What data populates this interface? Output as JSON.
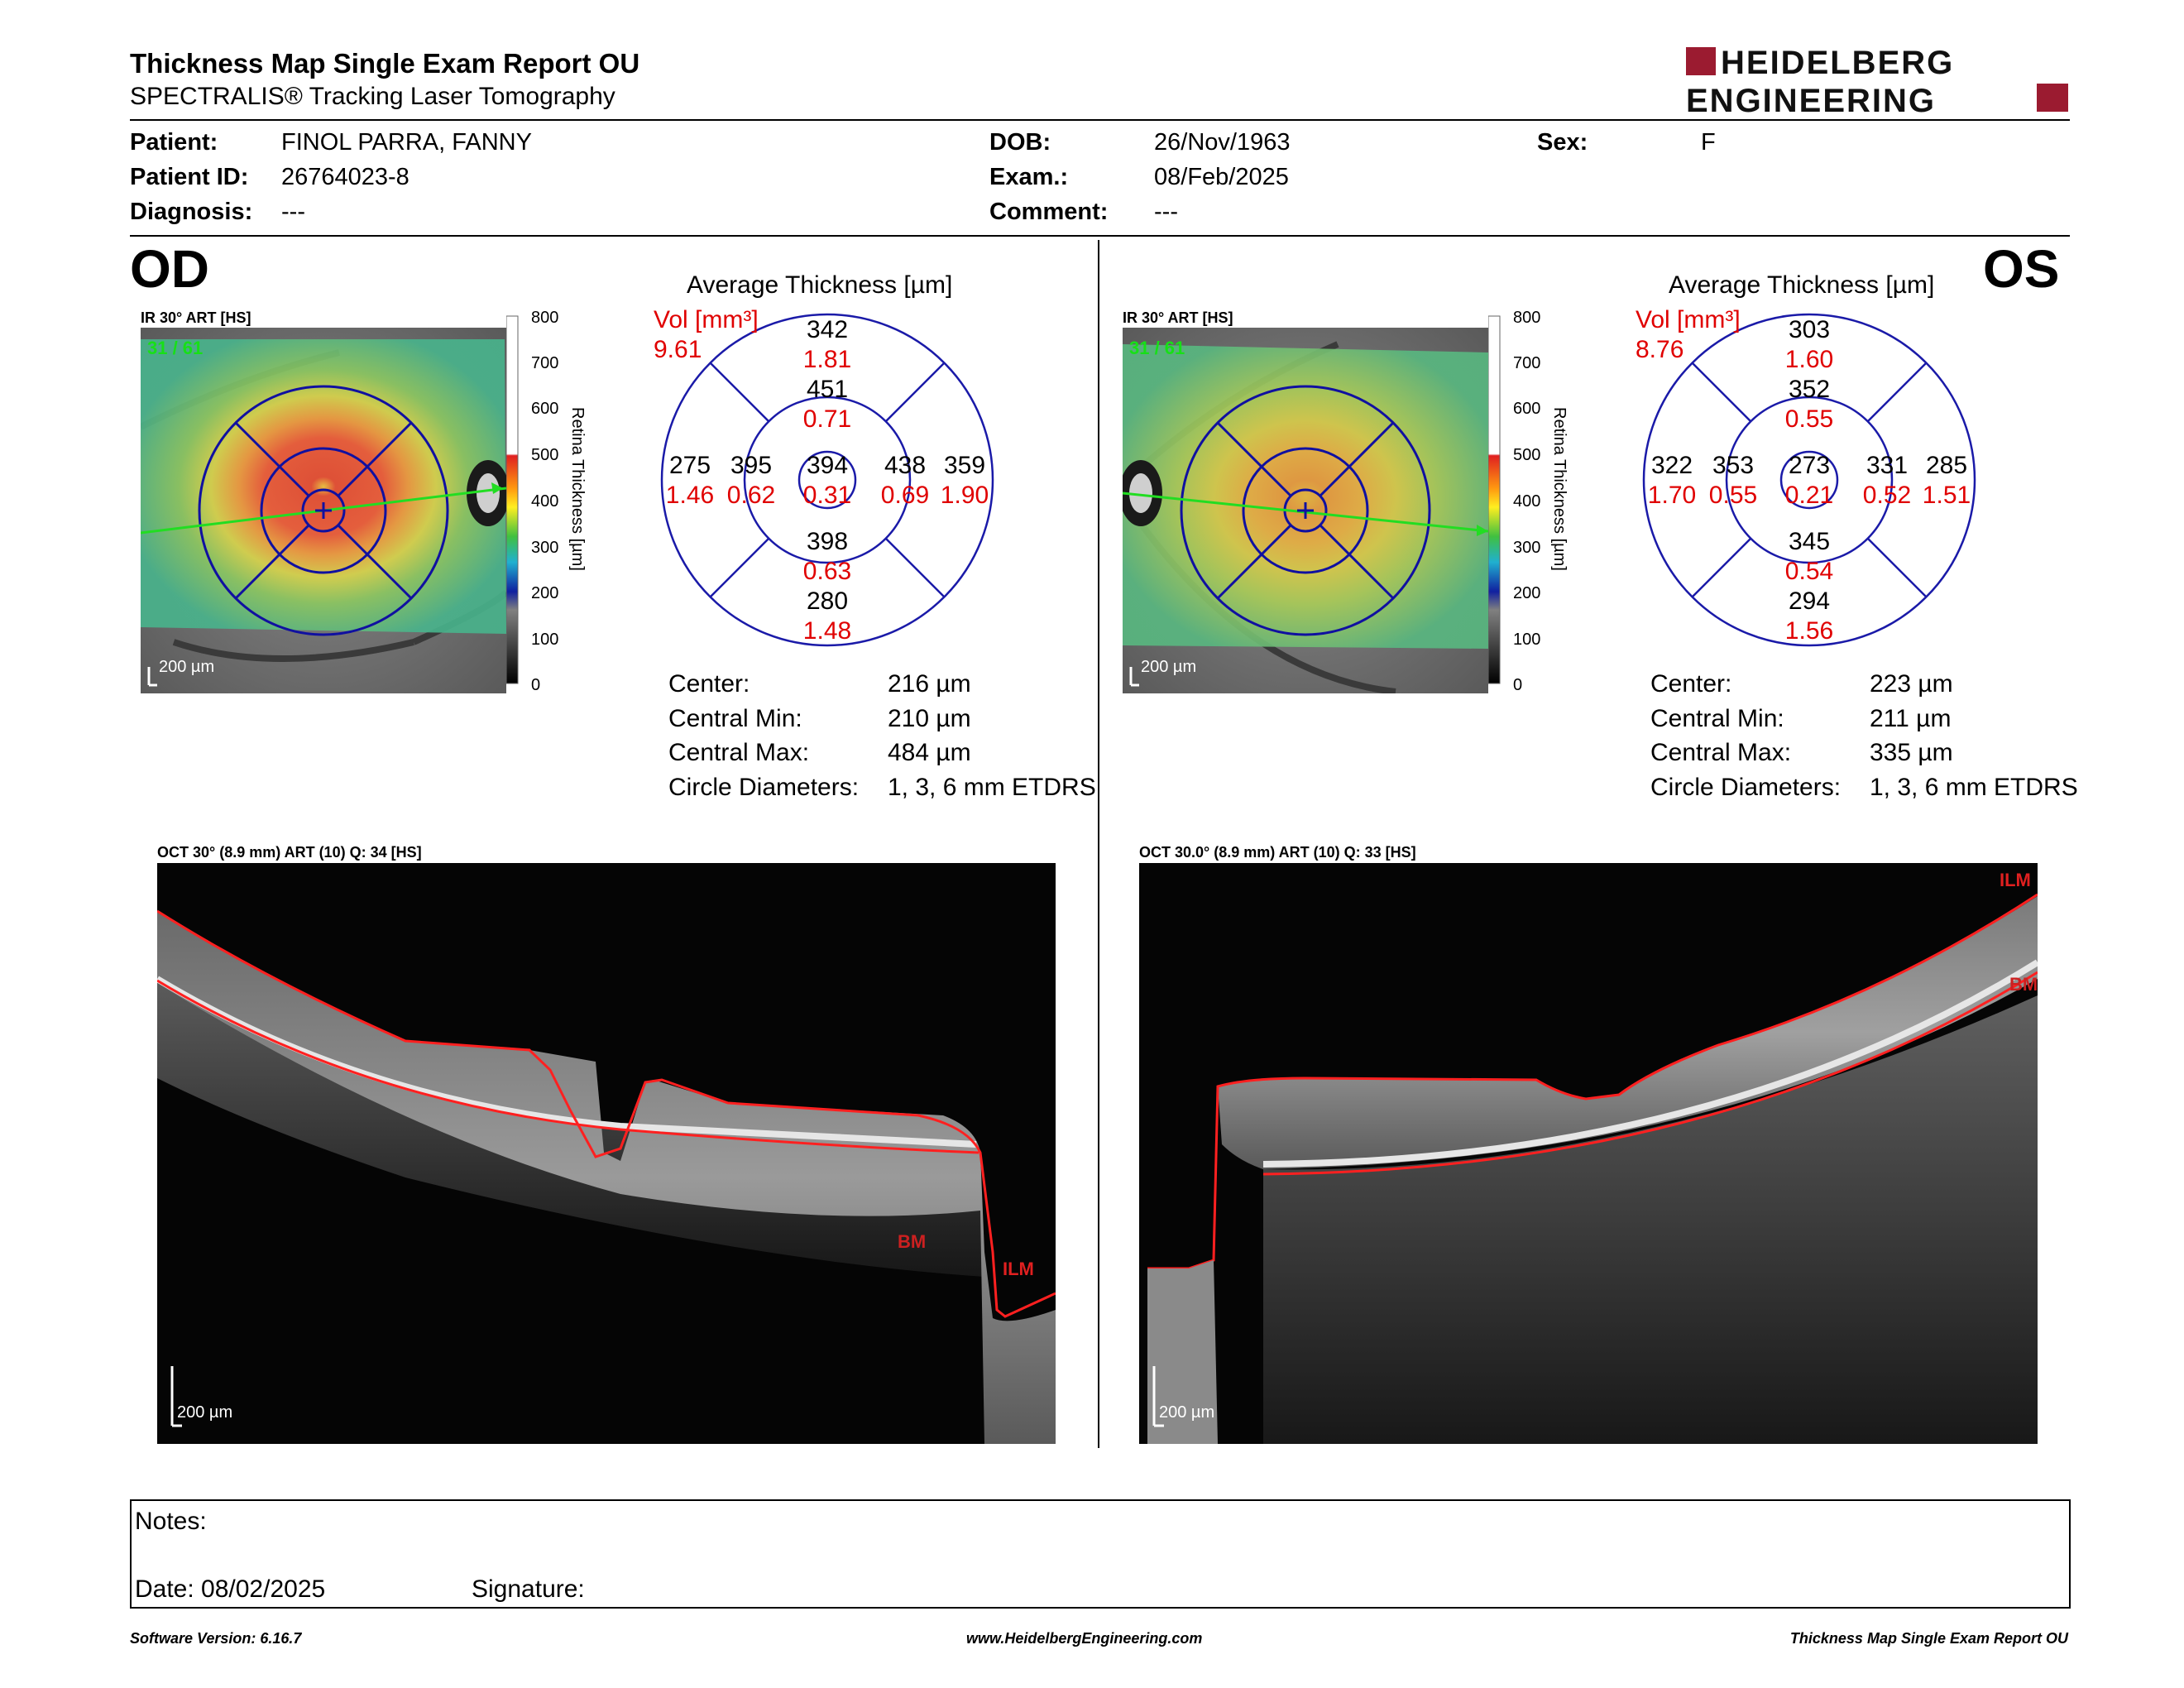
{
  "header": {
    "title": "Thickness Map Single Exam Report OU",
    "subtitle": "SPECTRALIS® Tracking Laser Tomography",
    "logo_line1": "HEIDELBERG",
    "logo_line2": "ENGINEERING"
  },
  "patient": {
    "patient_label": "Patient:",
    "patient_value": "FINOL PARRA, FANNY",
    "id_label": "Patient ID:",
    "id_value": "26764023-8",
    "diagnosis_label": "Diagnosis:",
    "diagnosis_value": "---",
    "dob_label": "DOB:",
    "dob_value": "26/Nov/1963",
    "exam_label": "Exam.:",
    "exam_value": "08/Feb/2025",
    "comment_label": "Comment:",
    "comment_value": "---",
    "sex_label": "Sex:",
    "sex_value": "F"
  },
  "od": {
    "eye": "OD",
    "ir_label": "IR 30° ART [HS]",
    "ir_count": "31 / 61",
    "scale_label": "200 µm",
    "avg_title": "Average Thickness [µm]",
    "vol_label": "Vol [mm³]",
    "vol_value": "9.61",
    "sectors": {
      "outer_superior": {
        "t": "342",
        "v": "1.81"
      },
      "inner_superior": {
        "t": "451",
        "v": "0.71"
      },
      "center": {
        "t": "394",
        "v": "0.31"
      },
      "inner_temporal_left": {
        "t": "395",
        "v": "0.62"
      },
      "outer_left": {
        "t": "275",
        "v": "1.46"
      },
      "inner_right": {
        "t": "438",
        "v": "0.69"
      },
      "outer_right": {
        "t": "359",
        "v": "1.90"
      },
      "inner_inferior": {
        "t": "398",
        "v": "0.63"
      },
      "outer_inferior": {
        "t": "280",
        "v": "1.48"
      }
    },
    "stats": {
      "center_label": "Center:",
      "center_value": "216 µm",
      "min_label": "Central Min:",
      "min_value": "210 µm",
      "max_label": "Central Max:",
      "max_value": "484 µm",
      "diam_label": "Circle Diameters:",
      "diam_value": "1, 3, 6 mm ETDRS"
    },
    "oct_label": "OCT 30° (8.9 mm) ART (10) Q: 34 [HS]",
    "oct_scale": "200 µm",
    "ilm": "ILM",
    "bm": "BM"
  },
  "os": {
    "eye": "OS",
    "ir_label": "IR 30° ART [HS]",
    "ir_count": "31 / 61",
    "scale_label": "200 µm",
    "avg_title": "Average Thickness [µm]",
    "vol_label": "Vol [mm³]",
    "vol_value": "8.76",
    "sectors": {
      "outer_superior": {
        "t": "303",
        "v": "1.60"
      },
      "inner_superior": {
        "t": "352",
        "v": "0.55"
      },
      "center": {
        "t": "273",
        "v": "0.21"
      },
      "inner_left": {
        "t": "353",
        "v": "0.55"
      },
      "outer_left": {
        "t": "322",
        "v": "1.70"
      },
      "inner_right": {
        "t": "331",
        "v": "0.52"
      },
      "outer_right": {
        "t": "285",
        "v": "1.51"
      },
      "inner_inferior": {
        "t": "345",
        "v": "0.54"
      },
      "outer_inferior": {
        "t": "294",
        "v": "1.56"
      }
    },
    "stats": {
      "center_label": "Center:",
      "center_value": "223 µm",
      "min_label": "Central Min:",
      "min_value": "211 µm",
      "max_label": "Central Max:",
      "max_value": "335 µm",
      "diam_label": "Circle Diameters:",
      "diam_value": "1, 3, 6 mm ETDRS"
    },
    "oct_label": "OCT 30.0° (8.9 mm) ART (10) Q: 33 [HS]",
    "oct_scale": "200 µm",
    "ilm": "ILM",
    "bm": "BM"
  },
  "colorbar": {
    "ticks": [
      "800",
      "700",
      "600",
      "500",
      "400",
      "300",
      "200",
      "100",
      "0"
    ],
    "axis_label": "Retina  Thickness [µm]"
  },
  "notes": {
    "notes_label": "Notes:",
    "date_label": "Date: 08/02/2025",
    "signature_label": "Signature:"
  },
  "footer": {
    "left": "Software Version: 6.16.7",
    "center": "www.HeidelbergEngineering.com",
    "right": "Thickness Map Single Exam Report OU"
  },
  "colors": {
    "etdrs_blue": "#1a1aa8",
    "volume_red": "#e00000",
    "logo_red": "#9b1b30",
    "seg_red": "#ff2020"
  }
}
